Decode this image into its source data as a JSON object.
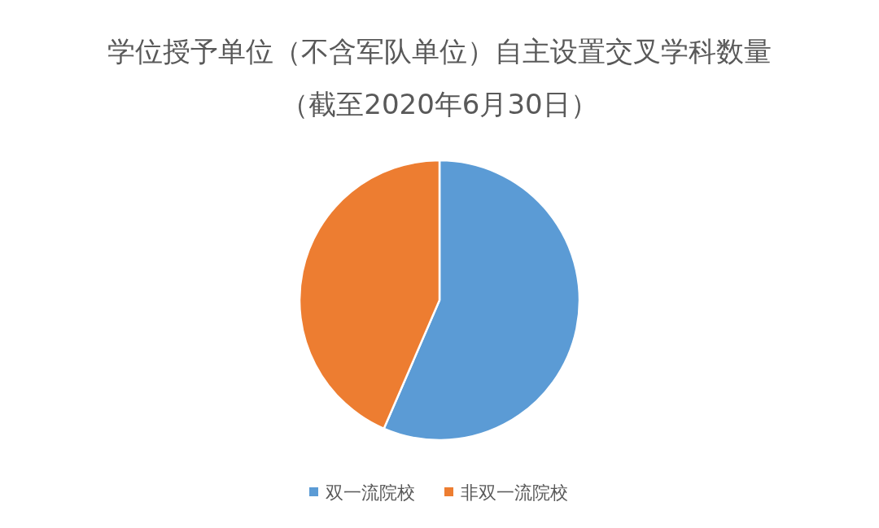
{
  "chart_data": {
    "type": "pie",
    "title": "学位授予单位（不含军队单位）自主设置交叉学科数量（截至2020年6月30日）",
    "categories": [
      "双一流院校",
      "非双一流院校"
    ],
    "values": [
      56.5,
      43.5
    ],
    "colors": [
      "#5b9bd5",
      "#ed7d31"
    ],
    "legend": "bottom"
  }
}
